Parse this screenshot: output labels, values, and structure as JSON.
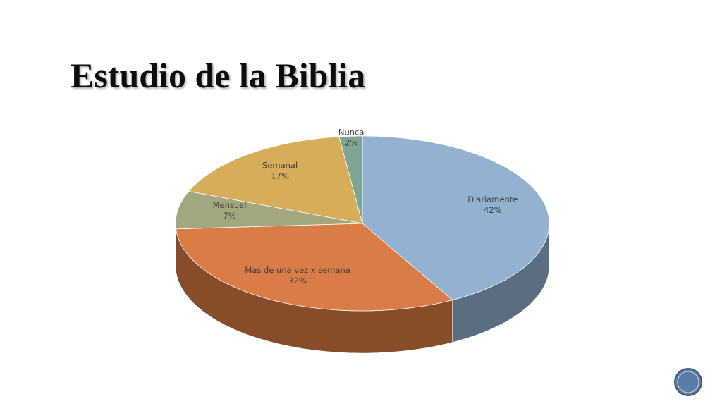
{
  "chart_data": {
    "type": "pie",
    "title": "Estudio de la Biblia",
    "categories": [
      "Diariamente",
      "Mas de una vez x semana",
      "Mensual",
      "Semanal",
      "Nunca"
    ],
    "values": [
      42,
      32,
      7,
      17,
      2
    ],
    "value_labels": [
      "42%",
      "32%",
      "7%",
      "17%",
      "2%"
    ],
    "colors": [
      "#93b1d0",
      "#d97c45",
      "#a3a77d",
      "#d6ae5a",
      "#7fa594"
    ]
  }
}
